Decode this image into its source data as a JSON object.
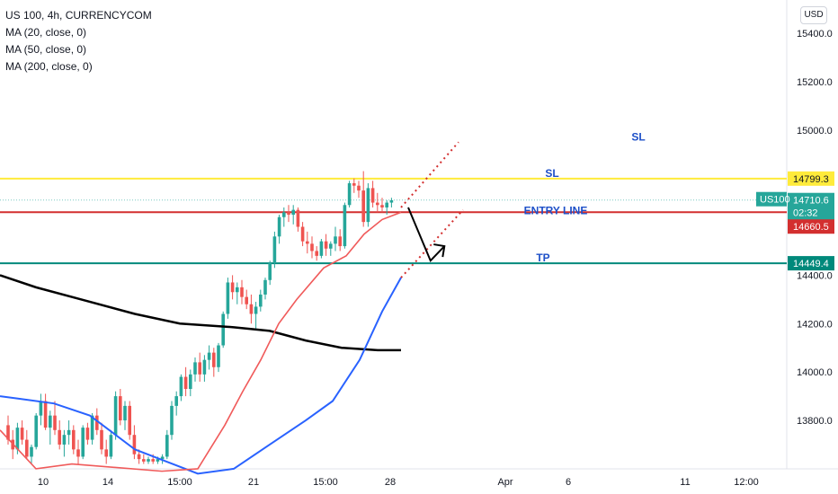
{
  "legend": {
    "symbol": "US 100, 4h, CURRENCYCOM",
    "ma20": "MA (20, close, 0)",
    "ma50": "MA (50, close, 0)",
    "ma200": "MA (200, close, 0)"
  },
  "currency": "USD",
  "colors": {
    "up": "#26a69a",
    "down": "#ef5350",
    "ma20": "#f05a5a",
    "ma50": "#2962ff",
    "ma200": "#000000",
    "sl_line": "#ffeb3b",
    "entry_line": "#d32f2f",
    "tp_line": "#00897b",
    "annotation_text": "#1e50c8"
  },
  "chart_data": {
    "type": "line",
    "title": "US 100, 4h, CURRENCYCOM",
    "y_axis_ticks": [
      "15400.0",
      "15200.0",
      "15000.0",
      "14400.0",
      "14200.0",
      "14000.0",
      "13800.0"
    ],
    "y_tick_values": [
      15400,
      15200,
      15000,
      14400,
      14200,
      14000,
      13800
    ],
    "x_axis_ticks": [
      "10",
      "14",
      "15:00",
      "21",
      "15:00",
      "28",
      "Apr",
      "6",
      "11",
      "12:00"
    ],
    "ylim": [
      13620,
      15530
    ],
    "price_labels": [
      {
        "name": "SL level",
        "text": "14799.3",
        "value": 14799.3
      },
      {
        "name": "US100 last",
        "symbol": "US100",
        "text": "14710.6",
        "sub": "02:32",
        "value": 14710.6
      },
      {
        "name": "Entry level",
        "text": "14660.5",
        "value": 14660.5
      },
      {
        "name": "TP level",
        "text": "14449.4",
        "value": 14449.4
      }
    ],
    "horizontal_lines": [
      {
        "label": "SL",
        "value": 14799.3
      },
      {
        "label": "ENTRY LINE",
        "value": 14660.5
      },
      {
        "label": "TP",
        "value": 14449.4
      }
    ],
    "annotations": [
      {
        "text": "SL",
        "value": 14975
      },
      {
        "text": "SL",
        "value": 14825
      },
      {
        "text": "ENTRY LINE",
        "value": 14670
      },
      {
        "text": "TP",
        "value": 14475
      }
    ],
    "candles": [
      [
        13780,
        13820,
        13700,
        13720
      ],
      [
        13720,
        13760,
        13640,
        13680
      ],
      [
        13680,
        13790,
        13660,
        13770
      ],
      [
        13770,
        13800,
        13700,
        13720
      ],
      [
        13720,
        13760,
        13640,
        13650
      ],
      [
        13650,
        13700,
        13620,
        13690
      ],
      [
        13690,
        13830,
        13680,
        13820
      ],
      [
        13820,
        13910,
        13780,
        13880
      ],
      [
        13880,
        13910,
        13760,
        13770
      ],
      [
        13770,
        13840,
        13700,
        13820
      ],
      [
        13820,
        13880,
        13740,
        13760
      ],
      [
        13760,
        13800,
        13680,
        13700
      ],
      [
        13700,
        13760,
        13650,
        13740
      ],
      [
        13740,
        13800,
        13700,
        13760
      ],
      [
        13760,
        13780,
        13660,
        13680
      ],
      [
        13680,
        13720,
        13620,
        13650
      ],
      [
        13650,
        13780,
        13640,
        13770
      ],
      [
        13770,
        13790,
        13700,
        13720
      ],
      [
        13720,
        13830,
        13700,
        13820
      ],
      [
        13820,
        13850,
        13740,
        13760
      ],
      [
        13760,
        13790,
        13660,
        13680
      ],
      [
        13680,
        13720,
        13620,
        13650
      ],
      [
        13650,
        13760,
        13640,
        13740
      ],
      [
        13740,
        13920,
        13720,
        13900
      ],
      [
        13900,
        13930,
        13780,
        13800
      ],
      [
        13800,
        13880,
        13760,
        13860
      ],
      [
        13860,
        13880,
        13720,
        13740
      ],
      [
        13740,
        13780,
        13640,
        13660
      ],
      [
        13660,
        13680,
        13620,
        13640
      ],
      [
        13640,
        13660,
        13620,
        13630
      ],
      [
        13630,
        13650,
        13620,
        13640
      ],
      [
        13640,
        13660,
        13620,
        13630
      ],
      [
        13630,
        13650,
        13620,
        13640
      ],
      [
        13640,
        13660,
        13620,
        13650
      ],
      [
        13650,
        13760,
        13640,
        13740
      ],
      [
        13740,
        13880,
        13720,
        13860
      ],
      [
        13860,
        13920,
        13820,
        13900
      ],
      [
        13900,
        13990,
        13880,
        13980
      ],
      [
        13980,
        14020,
        13900,
        13930
      ],
      [
        13930,
        14010,
        13900,
        13990
      ],
      [
        13990,
        14060,
        13960,
        14040
      ],
      [
        14040,
        14080,
        13960,
        13990
      ],
      [
        13990,
        14070,
        13960,
        14050
      ],
      [
        14050,
        14110,
        14010,
        14080
      ],
      [
        14080,
        14100,
        13980,
        14020
      ],
      [
        14020,
        14120,
        14000,
        14110
      ],
      [
        14110,
        14250,
        14100,
        14240
      ],
      [
        14240,
        14390,
        14220,
        14370
      ],
      [
        14370,
        14400,
        14300,
        14330
      ],
      [
        14330,
        14370,
        14280,
        14350
      ],
      [
        14350,
        14380,
        14280,
        14310
      ],
      [
        14310,
        14340,
        14260,
        14280
      ],
      [
        14280,
        14320,
        14200,
        14240
      ],
      [
        14240,
        14290,
        14180,
        14270
      ],
      [
        14270,
        14340,
        14250,
        14320
      ],
      [
        14320,
        14390,
        14300,
        14380
      ],
      [
        14380,
        14460,
        14360,
        14450
      ],
      [
        14450,
        14580,
        14430,
        14560
      ],
      [
        14560,
        14650,
        14530,
        14640
      ],
      [
        14640,
        14680,
        14600,
        14660
      ],
      [
        14660,
        14690,
        14620,
        14650
      ],
      [
        14650,
        14690,
        14610,
        14670
      ],
      [
        14670,
        14680,
        14580,
        14600
      ],
      [
        14600,
        14620,
        14520,
        14540
      ],
      [
        14540,
        14580,
        14490,
        14530
      ],
      [
        14530,
        14560,
        14470,
        14500
      ],
      [
        14500,
        14520,
        14460,
        14480
      ],
      [
        14480,
        14550,
        14470,
        14540
      ],
      [
        14540,
        14570,
        14480,
        14510
      ],
      [
        14510,
        14540,
        14480,
        14530
      ],
      [
        14530,
        14600,
        14500,
        14560
      ],
      [
        14560,
        14590,
        14500,
        14520
      ],
      [
        14520,
        14700,
        14510,
        14690
      ],
      [
        14690,
        14790,
        14680,
        14780
      ],
      [
        14780,
        14800,
        14740,
        14770
      ],
      [
        14770,
        14790,
        14720,
        14750
      ],
      [
        14750,
        14830,
        14600,
        14620
      ],
      [
        14620,
        14780,
        14600,
        14760
      ],
      [
        14760,
        14790,
        14680,
        14700
      ],
      [
        14700,
        14740,
        14660,
        14690
      ],
      [
        14690,
        14720,
        14660,
        14680
      ],
      [
        14680,
        14710,
        14650,
        14700
      ],
      [
        14700,
        14720,
        14680,
        14710
      ]
    ],
    "projection": [
      [
        0,
        14680
      ],
      [
        16,
        14460
      ],
      [
        26,
        14520
      ]
    ]
  }
}
